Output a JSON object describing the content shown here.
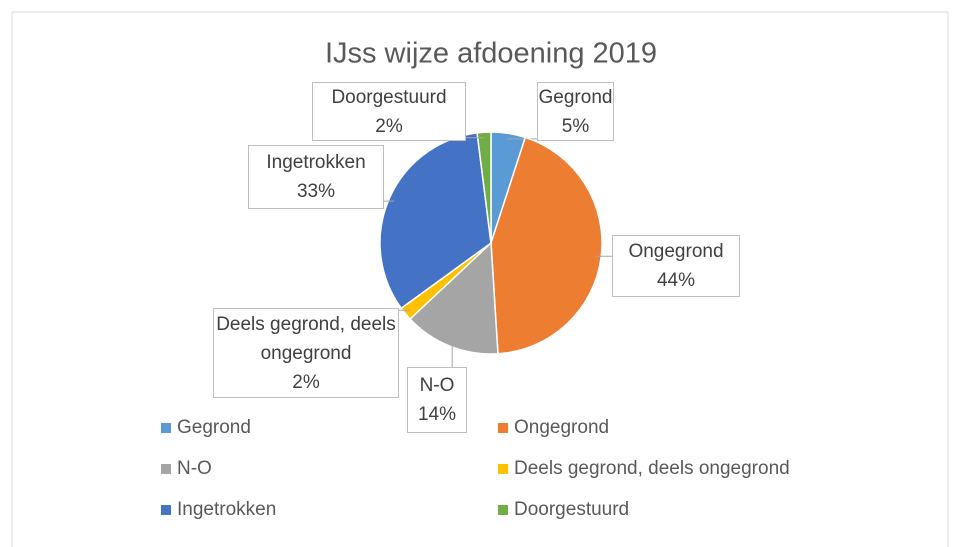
{
  "chart_data": {
    "type": "pie",
    "title": "IJss wijze afdoening 2019",
    "categories": [
      "Gegrond",
      "Ongegrond",
      "N-O",
      "Deels gegrond, deels ongegrond",
      "Ingetrokken",
      "Doorgestuurd"
    ],
    "values": [
      5,
      44,
      14,
      2,
      33,
      2
    ],
    "value_labels": [
      "5%",
      "44%",
      "14%",
      "2%",
      "33%",
      "2%"
    ],
    "colors": [
      "#5b9bd5",
      "#ed7d31",
      "#a5a5a5",
      "#ffc000",
      "#4472c4",
      "#70ad47"
    ],
    "legend": "bottom"
  }
}
